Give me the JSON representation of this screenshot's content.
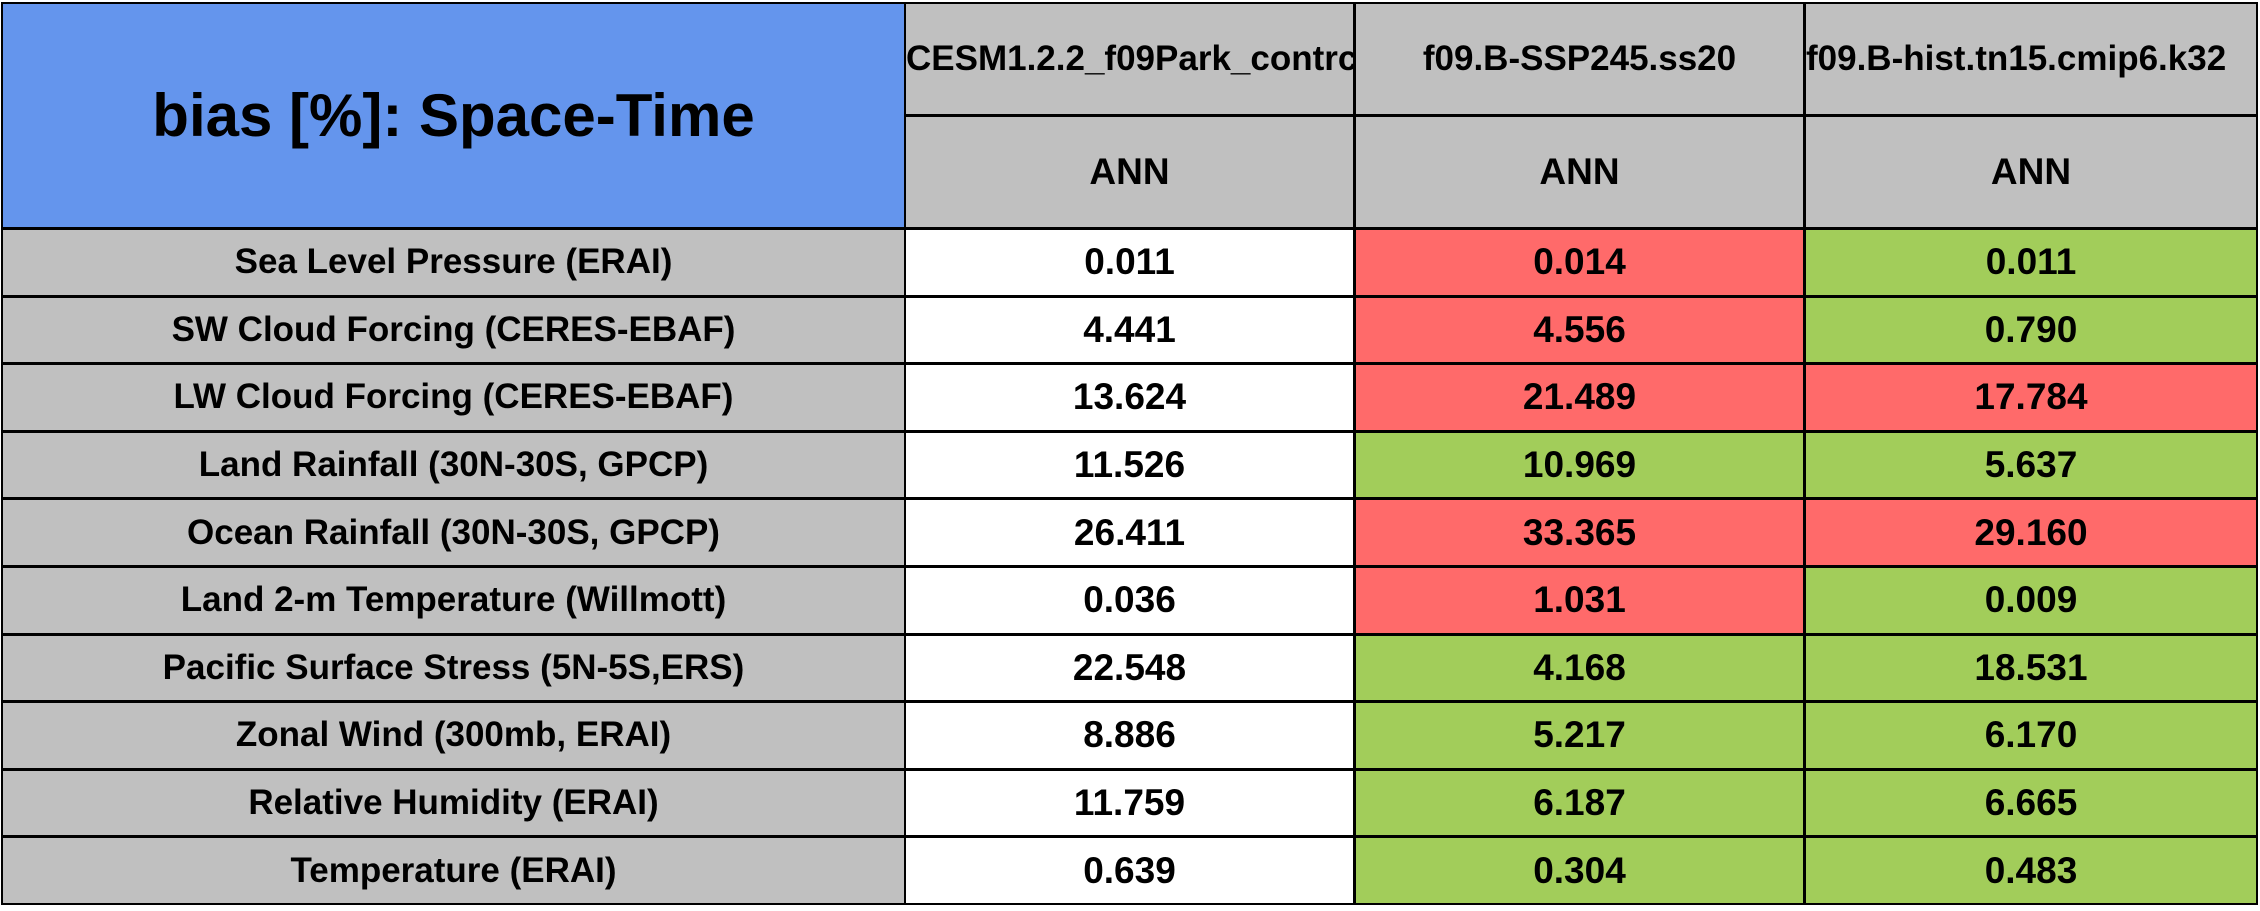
{
  "chart_data": {
    "type": "table",
    "title": "bias [%]: Space-Time",
    "columns": [
      {
        "model": "CESM1.2.2_f09Park_contrc",
        "season": "ANN"
      },
      {
        "model": "f09.B-SSP245.ss20",
        "season": "ANN"
      },
      {
        "model": "f09.B-hist.tn15.cmip6.k32",
        "season": "ANN"
      }
    ],
    "rows": [
      {
        "label": "Sea Level Pressure (ERAI)",
        "values": [
          "0.011",
          "0.014",
          "0.011"
        ],
        "status": [
          "none",
          "worse",
          "better"
        ]
      },
      {
        "label": "SW Cloud Forcing (CERES-EBAF)",
        "values": [
          "4.441",
          "4.556",
          "0.790"
        ],
        "status": [
          "none",
          "worse",
          "better"
        ]
      },
      {
        "label": "LW Cloud Forcing (CERES-EBAF)",
        "values": [
          "13.624",
          "21.489",
          "17.784"
        ],
        "status": [
          "none",
          "worse",
          "worse"
        ]
      },
      {
        "label": "Land Rainfall (30N-30S, GPCP)",
        "values": [
          "11.526",
          "10.969",
          "5.637"
        ],
        "status": [
          "none",
          "better",
          "better"
        ]
      },
      {
        "label": "Ocean Rainfall (30N-30S, GPCP)",
        "values": [
          "26.411",
          "33.365",
          "29.160"
        ],
        "status": [
          "none",
          "worse",
          "worse"
        ]
      },
      {
        "label": "Land 2-m Temperature (Willmott)",
        "values": [
          "0.036",
          "1.031",
          "0.009"
        ],
        "status": [
          "none",
          "worse",
          "better"
        ]
      },
      {
        "label": "Pacific Surface Stress (5N-5S,ERS)",
        "values": [
          "22.548",
          "4.168",
          "18.531"
        ],
        "status": [
          "none",
          "better",
          "better"
        ]
      },
      {
        "label": "Zonal Wind (300mb, ERAI)",
        "values": [
          "8.886",
          "5.217",
          "6.170"
        ],
        "status": [
          "none",
          "better",
          "better"
        ]
      },
      {
        "label": "Relative Humidity (ERAI)",
        "values": [
          "11.759",
          "6.187",
          "6.665"
        ],
        "status": [
          "none",
          "better",
          "better"
        ]
      },
      {
        "label": "Temperature (ERAI)",
        "values": [
          "0.639",
          "0.304",
          "0.483"
        ],
        "status": [
          "none",
          "better",
          "better"
        ]
      }
    ]
  },
  "colors": {
    "title_bg": "#6495ed",
    "header_bg": "#c0c0c0",
    "label_bg": "#c0c0c0",
    "base_value_bg": "#ffffff",
    "worse": "#ff6a6a",
    "better": "#a2cd5a",
    "border": "#000000"
  }
}
